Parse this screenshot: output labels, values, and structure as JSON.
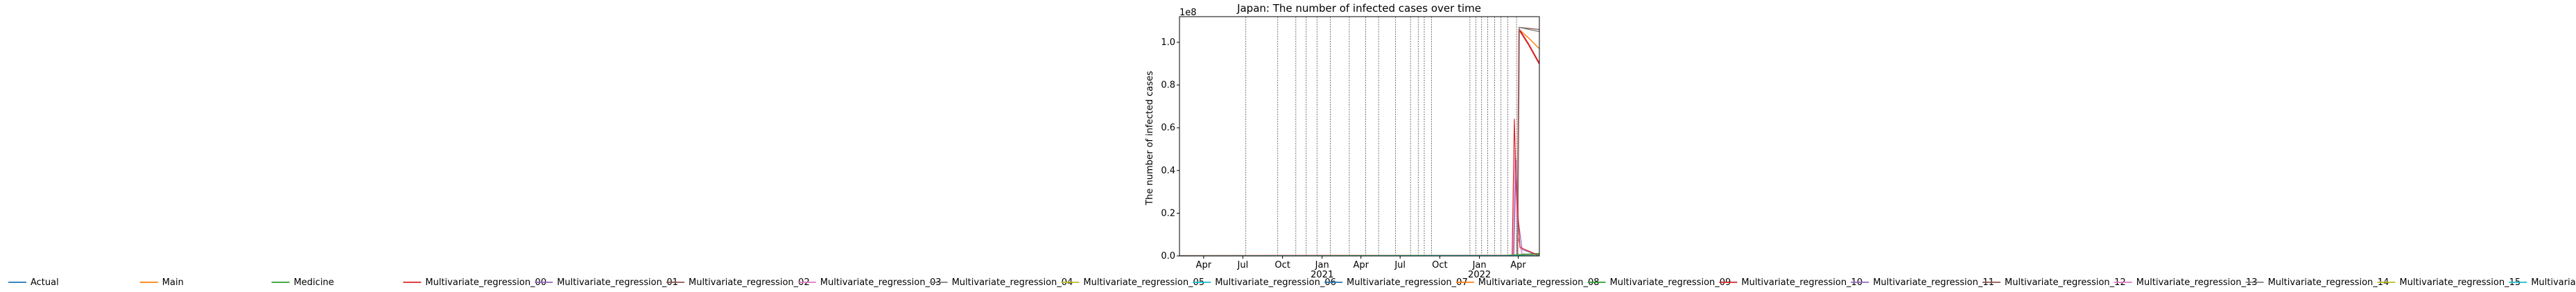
{
  "chart_data": {
    "type": "line",
    "title": "Japan: The number of infected cases over time",
    "xlabel": "",
    "ylabel": "The number of infected cases",
    "y_offset_text": "1e8",
    "ylim": [
      0,
      1.12
    ],
    "xlim": [
      "2020-02-05",
      "2022-05-20"
    ],
    "y_ticks": [
      "0.0",
      "0.2",
      "0.4",
      "0.6",
      "0.8",
      "1.0"
    ],
    "x_ticks": [
      {
        "date": "2020-04-01",
        "label": "Apr",
        "sub": ""
      },
      {
        "date": "2020-07-01",
        "label": "Jul",
        "sub": ""
      },
      {
        "date": "2020-10-01",
        "label": "Oct",
        "sub": ""
      },
      {
        "date": "2021-01-01",
        "label": "Jan",
        "sub": "2021"
      },
      {
        "date": "2021-04-01",
        "label": "Apr",
        "sub": ""
      },
      {
        "date": "2021-07-01",
        "label": "Jul",
        "sub": ""
      },
      {
        "date": "2021-10-01",
        "label": "Oct",
        "sub": ""
      },
      {
        "date": "2022-01-01",
        "label": "Jan",
        "sub": "2022"
      },
      {
        "date": "2022-04-01",
        "label": "Apr",
        "sub": ""
      }
    ],
    "change_dates": [
      "2020-07-08",
      "2020-09-20",
      "2020-11-01",
      "2020-11-25",
      "2020-12-20",
      "2021-01-20",
      "2021-03-05",
      "2021-04-12",
      "2021-05-12",
      "2021-06-20",
      "2021-07-25",
      "2021-08-12",
      "2021-08-26",
      "2021-09-12",
      "2021-12-10",
      "2021-12-24",
      "2022-01-06",
      "2022-01-20",
      "2022-02-05",
      "2022-02-20",
      "2022-03-08",
      "2022-03-28"
    ],
    "grid": false,
    "legend_position": "bottom",
    "series": [
      {
        "name": "Actual",
        "color": "#1f77b4",
        "width": 1.4,
        "points": [
          [
            "2020-02-05",
            0
          ],
          [
            "2022-05-20",
            0
          ]
        ]
      },
      {
        "name": "Main",
        "color": "#ff7f0e",
        "width": 1.4,
        "points": [
          [
            "2020-02-05",
            0
          ],
          [
            "2022-03-30",
            0.002
          ],
          [
            "2022-04-03",
            1.06
          ],
          [
            "2022-04-25",
            1.02
          ],
          [
            "2022-05-20",
            0.97
          ]
        ]
      },
      {
        "name": "Medicine",
        "color": "#2ca02c",
        "width": 1.4,
        "points": [
          [
            "2020-02-05",
            0
          ],
          [
            "2022-03-01",
            0.002
          ],
          [
            "2022-05-20",
            0.01
          ]
        ]
      },
      {
        "name": "Multivariate_regression_00",
        "color": "#d62728",
        "width": 2.2,
        "points": [
          [
            "2020-02-05",
            0
          ],
          [
            "2022-03-30",
            0.002
          ],
          [
            "2022-04-03",
            1.06
          ],
          [
            "2022-04-25",
            0.99
          ],
          [
            "2022-05-20",
            0.9
          ]
        ]
      },
      {
        "name": "Multivariate_regression_01",
        "color": "#9467bd",
        "width": 1.2,
        "points": [
          [
            "2020-02-05",
            0
          ],
          [
            "2022-03-22",
            0.002
          ],
          [
            "2022-03-27",
            0.45
          ],
          [
            "2022-03-30",
            0.2
          ],
          [
            "2022-04-10",
            0.03
          ],
          [
            "2022-05-20",
            0.002
          ]
        ]
      },
      {
        "name": "Multivariate_regression_02",
        "color": "#8c564b",
        "width": 1.2,
        "points": [
          [
            "2020-02-05",
            0
          ],
          [
            "2022-03-30",
            0.002
          ],
          [
            "2022-04-03",
            1.07
          ],
          [
            "2022-05-20",
            1.06
          ]
        ]
      },
      {
        "name": "Multivariate_regression_03",
        "color": "#e377c2",
        "width": 1.2,
        "points": [
          [
            "2020-02-05",
            0
          ],
          [
            "2022-03-20",
            0.002
          ],
          [
            "2022-03-25",
            0.5
          ],
          [
            "2022-03-30",
            0.1
          ],
          [
            "2022-04-10",
            0.01
          ],
          [
            "2022-05-20",
            0
          ]
        ]
      },
      {
        "name": "Multivariate_regression_04",
        "color": "#7f7f7f",
        "width": 1.4,
        "points": [
          [
            "2020-02-05",
            0
          ],
          [
            "2022-03-30",
            0.002
          ],
          [
            "2022-04-03",
            1.07
          ],
          [
            "2022-05-20",
            1.05
          ]
        ]
      },
      {
        "name": "Multivariate_regression_05",
        "color": "#bcbd22",
        "width": 1.2,
        "points": [
          [
            "2020-02-05",
            0
          ],
          [
            "2022-05-20",
            0.003
          ]
        ]
      },
      {
        "name": "Multivariate_regression_06",
        "color": "#17becf",
        "width": 1.2,
        "points": [
          [
            "2020-02-05",
            0
          ],
          [
            "2022-05-20",
            0.003
          ]
        ]
      },
      {
        "name": "Multivariate_regression_07",
        "color": "#1f77b4",
        "width": 1.2,
        "points": [
          [
            "2020-02-05",
            0
          ],
          [
            "2022-05-20",
            0.002
          ]
        ]
      },
      {
        "name": "Multivariate_regression_08",
        "color": "#ff7f0e",
        "width": 1.2,
        "points": [
          [
            "2020-02-05",
            0
          ],
          [
            "2022-05-20",
            0.004
          ]
        ]
      },
      {
        "name": "Multivariate_regression_09",
        "color": "#2ca02c",
        "width": 1.2,
        "points": [
          [
            "2020-02-05",
            0
          ],
          [
            "2022-03-01",
            0.003
          ],
          [
            "2022-05-20",
            0.012
          ]
        ]
      },
      {
        "name": "Multivariate_regression_10",
        "color": "#d62728",
        "width": 1.2,
        "points": [
          [
            "2020-02-05",
            0
          ],
          [
            "2022-03-18",
            0.002
          ],
          [
            "2022-03-23",
            0.64
          ],
          [
            "2022-03-27",
            0.35
          ],
          [
            "2022-04-05",
            0.04
          ],
          [
            "2022-05-20",
            0.002
          ]
        ]
      },
      {
        "name": "Multivariate_regression_11",
        "color": "#9467bd",
        "width": 1.2,
        "points": [
          [
            "2020-02-05",
            0
          ],
          [
            "2022-05-20",
            0.002
          ]
        ]
      },
      {
        "name": "Multivariate_regression_12",
        "color": "#8c564b",
        "width": 1.2,
        "points": [
          [
            "2020-02-05",
            0
          ],
          [
            "2022-05-20",
            0.002
          ]
        ]
      },
      {
        "name": "Multivariate_regression_13",
        "color": "#e377c2",
        "width": 1.2,
        "points": [
          [
            "2020-02-05",
            0
          ],
          [
            "2022-05-20",
            0.002
          ]
        ]
      },
      {
        "name": "Multivariate_regression_14",
        "color": "#7f7f7f",
        "width": 1.2,
        "points": [
          [
            "2020-02-05",
            0
          ],
          [
            "2022-05-20",
            0.002
          ]
        ]
      },
      {
        "name": "Multivariate_regression_15",
        "color": "#bcbd22",
        "width": 1.2,
        "points": [
          [
            "2020-02-05",
            0
          ],
          [
            "2022-05-20",
            0.002
          ]
        ]
      },
      {
        "name": "Multivariate_regression_Likely",
        "color": "#17becf",
        "width": 1.2,
        "points": [
          [
            "2020-02-05",
            0
          ],
          [
            "2022-05-20",
            0.002
          ]
        ]
      }
    ]
  }
}
